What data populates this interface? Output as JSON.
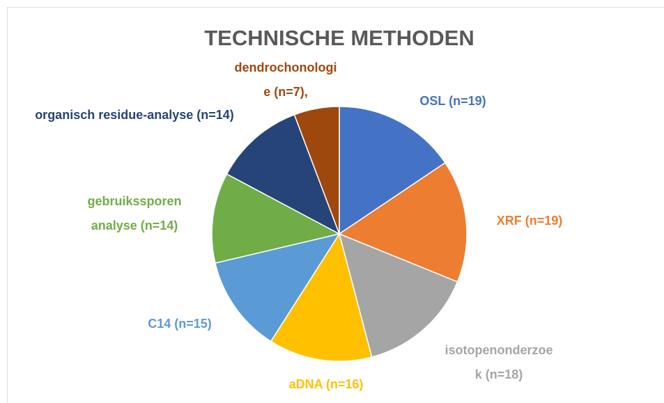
{
  "chart_data": {
    "type": "pie",
    "title": "TECHNISCHE METHODEN",
    "values": [
      19,
      19,
      18,
      16,
      15,
      14,
      14,
      7
    ],
    "value_labels": [
      "OSL (n=19)",
      "XRF (n=19)",
      "isotopenonderzoek (n=18)",
      "aDNA (n=16)",
      "C14 (n=15)",
      "gebruikssporen analyse (n=14)",
      "organisch residue-analyse (n=14)",
      "dendrochonologie (n=7),"
    ],
    "colors": [
      "#4472c4",
      "#ed7d31",
      "#a5a5a5",
      "#ffc000",
      "#5b9bd5",
      "#70ad47",
      "#264478",
      "#9e480e"
    ]
  }
}
